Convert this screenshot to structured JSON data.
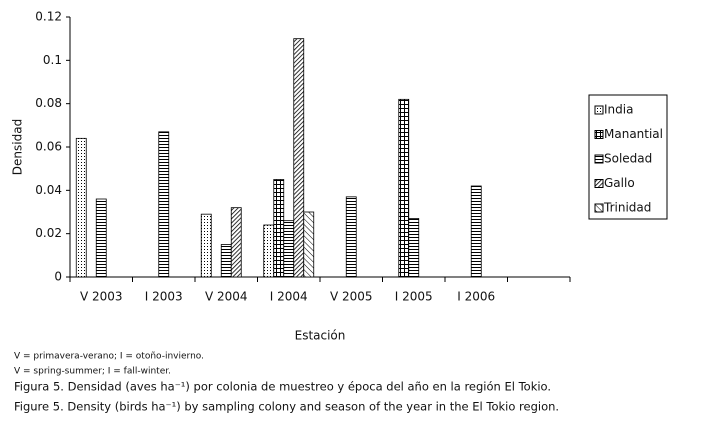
{
  "chart_data": {
    "type": "bar",
    "categories": [
      "V 2003",
      "I 2003",
      "V 2004",
      "I 2004",
      "V 2005",
      "I 2005",
      "I 2006",
      null
    ],
    "series": [
      {
        "name": "India",
        "color": "#000000",
        "pattern": "dots",
        "values": [
          0.064,
          null,
          0.029,
          0.024,
          null,
          null,
          null,
          null
        ]
      },
      {
        "name": "Manantial",
        "color": "#000000",
        "pattern": "grid",
        "values": [
          null,
          null,
          null,
          0.045,
          null,
          0.082,
          null,
          null
        ]
      },
      {
        "name": "Soledad",
        "color": "#000000",
        "pattern": "horizontal",
        "values": [
          0.036,
          0.067,
          0.015,
          0.026,
          0.037,
          0.027,
          0.042,
          null
        ]
      },
      {
        "name": "Gallo",
        "color": "#000000",
        "pattern": "dense-diagonal",
        "values": [
          null,
          null,
          0.032,
          0.11,
          null,
          null,
          null,
          null
        ]
      },
      {
        "name": "Trinidad",
        "color": "#000000",
        "pattern": "diagonal",
        "values": [
          null,
          null,
          null,
          0.03,
          null,
          null,
          null,
          null
        ]
      }
    ],
    "ylim": [
      0,
      0.12
    ],
    "yticks": [
      0,
      0.02,
      0.04,
      0.06,
      0.08,
      0.1,
      0.12
    ],
    "ylabel": "Densidad",
    "xlabel": "Estación",
    "legend": "right"
  },
  "caption": [
    "V = primavera-verano; I = otoño-invierno.",
    "V = spring-summer; I = fall-winter.",
    "Figura 5. Densidad (aves ha⁻¹) por colonia de muestreo y época del año en la región El Tokio.",
    "Figure 5. Density (birds ha⁻¹) by sampling colony and season of the year in the El Tokio region."
  ]
}
